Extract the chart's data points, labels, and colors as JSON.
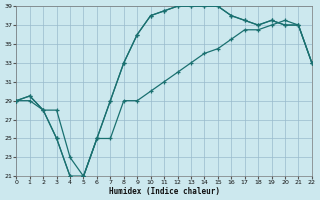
{
  "bg_color": "#cce8ee",
  "grid_color": "#99bbcc",
  "line_color": "#1a7070",
  "xlim": [
    0,
    22
  ],
  "ylim": [
    21,
    39
  ],
  "xticks": [
    0,
    1,
    2,
    3,
    4,
    5,
    6,
    7,
    8,
    9,
    10,
    11,
    12,
    13,
    14,
    15,
    16,
    17,
    18,
    19,
    20,
    21,
    22
  ],
  "yticks": [
    21,
    23,
    25,
    27,
    29,
    31,
    33,
    35,
    37,
    39
  ],
  "xlabel": "Humidex (Indice chaleur)",
  "line1_x": [
    0,
    1,
    2,
    3,
    4,
    5,
    6,
    7,
    8,
    9,
    10,
    11,
    12,
    13,
    14,
    15,
    16,
    17,
    18,
    19,
    20,
    21,
    22
  ],
  "line1_y": [
    29,
    29.5,
    28,
    28,
    23,
    21,
    25,
    29,
    33,
    36,
    38,
    38.5,
    39,
    39,
    39,
    39,
    38,
    37.5,
    37,
    37.5,
    37,
    37,
    33
  ],
  "line2_x": [
    0,
    1,
    2,
    3,
    4,
    5,
    6,
    7,
    8,
    9,
    10,
    11,
    12,
    13,
    14,
    15,
    16,
    17,
    18,
    19,
    20,
    21,
    22
  ],
  "line2_y": [
    29,
    29.5,
    28,
    25,
    21,
    21,
    25,
    29,
    33,
    36,
    38,
    38.5,
    39,
    39,
    39,
    39,
    38,
    37.5,
    37,
    37.5,
    37,
    37,
    33
  ],
  "line3_x": [
    0,
    1,
    2,
    3,
    4,
    5,
    6,
    7,
    8,
    9,
    10,
    11,
    12,
    13,
    14,
    15,
    16,
    17,
    18,
    19,
    20,
    21,
    22
  ],
  "line3_y": [
    29,
    29,
    28,
    25,
    21,
    21,
    25,
    25,
    29,
    29,
    30,
    31,
    32,
    33,
    34,
    34.5,
    35.5,
    36.5,
    36.5,
    37,
    37.5,
    37,
    33
  ]
}
